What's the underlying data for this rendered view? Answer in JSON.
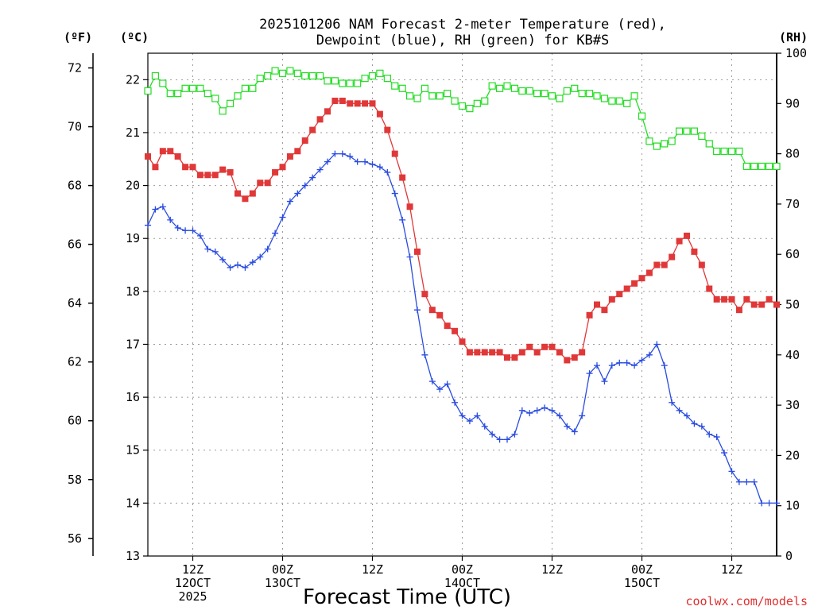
{
  "chart_data": {
    "type": "line",
    "title_lines": [
      "2025101206 NAM Forecast 2-meter Temperature (red),",
      "Dewpoint (blue), RH (green) for KB#S"
    ],
    "xlabel": "Forecast Time (UTC)",
    "credit": "coolwx.com/models",
    "units": {
      "fahrenheit": "(ºF)",
      "celsius": "(ºC)",
      "rh": "(RH)"
    },
    "x_ticks": [
      {
        "hour": 6,
        "lines": [
          "12Z",
          "12OCT",
          "2025"
        ]
      },
      {
        "hour": 18,
        "lines": [
          "00Z",
          "13OCT"
        ]
      },
      {
        "hour": 30,
        "lines": [
          "12Z"
        ]
      },
      {
        "hour": 42,
        "lines": [
          "00Z",
          "14OCT"
        ]
      },
      {
        "hour": 54,
        "lines": [
          "12Z"
        ]
      },
      {
        "hour": 66,
        "lines": [
          "00Z",
          "15OCT"
        ]
      },
      {
        "hour": 78,
        "lines": [
          "12Z"
        ]
      }
    ],
    "x_range_hours": [
      0,
      84
    ],
    "y_celsius": {
      "range": [
        13,
        22.5
      ],
      "ticks": [
        "13",
        "14",
        "15",
        "16",
        "17",
        "18",
        "19",
        "20",
        "21",
        "22"
      ]
    },
    "y_fahrenheit": {
      "ticks": [
        "56",
        "58",
        "60",
        "62",
        "64",
        "66",
        "68",
        "70",
        "72"
      ]
    },
    "y_rh": {
      "range": [
        0,
        100
      ],
      "ticks": [
        "0",
        "10",
        "20",
        "30",
        "40",
        "50",
        "60",
        "70",
        "80",
        "90",
        "100"
      ]
    },
    "grid": true,
    "series": [
      {
        "name": "Temperature",
        "axis": "celsius",
        "color": "#e03838",
        "marker": "filled-square",
        "x": [
          0,
          1,
          2,
          3,
          4,
          5,
          6,
          7,
          8,
          9,
          10,
          11,
          12,
          13,
          14,
          15,
          16,
          17,
          18,
          19,
          20,
          21,
          22,
          23,
          24,
          25,
          26,
          27,
          28,
          29,
          30,
          31,
          32,
          33,
          34,
          35,
          36,
          37,
          38,
          39,
          40,
          41,
          42,
          43,
          44,
          45,
          46,
          47,
          48,
          49,
          50,
          51,
          52,
          53,
          54,
          55,
          56,
          57,
          58,
          59,
          60,
          61,
          62,
          63,
          64,
          65,
          66,
          67,
          68,
          69,
          70,
          71,
          72,
          73,
          74,
          75,
          76,
          77,
          78,
          79,
          80,
          81,
          82,
          83,
          84
        ],
        "values": [
          20.55,
          20.35,
          20.65,
          20.65,
          20.55,
          20.35,
          20.35,
          20.2,
          20.2,
          20.2,
          20.3,
          20.25,
          19.85,
          19.75,
          19.85,
          20.05,
          20.05,
          20.25,
          20.35,
          20.55,
          20.65,
          20.85,
          21.05,
          21.25,
          21.4,
          21.6,
          21.6,
          21.55,
          21.55,
          21.55,
          21.55,
          21.35,
          21.05,
          20.6,
          20.15,
          19.6,
          18.75,
          17.95,
          17.65,
          17.55,
          17.35,
          17.25,
          17.05,
          16.85,
          16.85,
          16.85,
          16.85,
          16.85,
          16.75,
          16.75,
          16.85,
          16.95,
          16.85,
          16.95,
          16.95,
          16.85,
          16.7,
          16.75,
          16.85,
          17.55,
          17.75,
          17.65,
          17.85,
          17.95,
          18.05,
          18.15,
          18.25,
          18.35,
          18.5,
          18.5,
          18.65,
          18.95,
          19.05,
          18.75,
          18.5,
          18.05,
          17.85,
          17.85,
          17.85,
          17.65,
          17.85,
          17.75,
          17.75,
          17.85,
          17.75
        ]
      },
      {
        "name": "Dewpoint",
        "axis": "celsius",
        "color": "#2a4be0",
        "marker": "plus",
        "x": [
          0,
          1,
          2,
          3,
          4,
          5,
          6,
          7,
          8,
          9,
          10,
          11,
          12,
          13,
          14,
          15,
          16,
          17,
          18,
          19,
          20,
          21,
          22,
          23,
          24,
          25,
          26,
          27,
          28,
          29,
          30,
          31,
          32,
          33,
          34,
          35,
          36,
          37,
          38,
          39,
          40,
          41,
          42,
          43,
          44,
          45,
          46,
          47,
          48,
          49,
          50,
          51,
          52,
          53,
          54,
          55,
          56,
          57,
          58,
          59,
          60,
          61,
          62,
          63,
          64,
          65,
          66,
          67,
          68,
          69,
          70,
          71,
          72,
          73,
          74,
          75,
          76,
          77,
          78,
          79,
          80,
          81,
          82,
          83,
          84
        ],
        "values": [
          19.25,
          19.55,
          19.6,
          19.35,
          19.2,
          19.15,
          19.15,
          19.05,
          18.8,
          18.75,
          18.6,
          18.45,
          18.5,
          18.45,
          18.55,
          18.65,
          18.8,
          19.1,
          19.4,
          19.7,
          19.85,
          20.0,
          20.15,
          20.3,
          20.45,
          20.6,
          20.6,
          20.55,
          20.45,
          20.45,
          20.4,
          20.35,
          20.25,
          19.85,
          19.35,
          18.65,
          17.65,
          16.8,
          16.3,
          16.15,
          16.25,
          15.9,
          15.65,
          15.55,
          15.65,
          15.45,
          15.3,
          15.2,
          15.2,
          15.3,
          15.75,
          15.7,
          15.75,
          15.8,
          15.75,
          15.65,
          15.45,
          15.35,
          15.65,
          16.45,
          16.6,
          16.3,
          16.6,
          16.65,
          16.65,
          16.6,
          16.7,
          16.8,
          17.0,
          16.6,
          15.9,
          15.75,
          15.65,
          15.5,
          15.45,
          15.3,
          15.25,
          14.95,
          14.6,
          14.4,
          14.4,
          14.4,
          14.0,
          14.0,
          14.0
        ],
        "note": "values after hour 83 continue off-axis"
      },
      {
        "name": "RH",
        "axis": "rh",
        "color": "#22dd22",
        "marker": "open-square",
        "x": [
          0,
          1,
          2,
          3,
          4,
          5,
          6,
          7,
          8,
          9,
          10,
          11,
          12,
          13,
          14,
          15,
          16,
          17,
          18,
          19,
          20,
          21,
          22,
          23,
          24,
          25,
          26,
          27,
          28,
          29,
          30,
          31,
          32,
          33,
          34,
          35,
          36,
          37,
          38,
          39,
          40,
          41,
          42,
          43,
          44,
          45,
          46,
          47,
          48,
          49,
          50,
          51,
          52,
          53,
          54,
          55,
          56,
          57,
          58,
          59,
          60,
          61,
          62,
          63,
          64,
          65,
          66,
          67,
          68,
          69,
          70,
          71,
          72,
          73,
          74,
          75,
          76,
          77,
          78,
          79,
          80,
          81,
          82,
          83,
          84
        ],
        "values": [
          92.5,
          95.5,
          94.0,
          92.0,
          92.0,
          93.0,
          93.0,
          93.0,
          92.0,
          91.0,
          88.5,
          90.0,
          91.5,
          93.0,
          93.0,
          95.0,
          95.5,
          96.5,
          96.0,
          96.5,
          96.0,
          95.5,
          95.5,
          95.5,
          94.5,
          94.5,
          94.0,
          94.0,
          94.0,
          95.0,
          95.5,
          96.0,
          95.0,
          93.5,
          93.0,
          91.5,
          91.0,
          93.0,
          91.5,
          91.5,
          92.0,
          90.5,
          89.5,
          89.0,
          90.0,
          90.5,
          93.5,
          93.0,
          93.5,
          93.0,
          92.5,
          92.5,
          92.0,
          92.0,
          91.5,
          91.0,
          92.5,
          93.0,
          92.0,
          92.0,
          91.5,
          91.0,
          90.5,
          90.5,
          90.0,
          91.5,
          87.5,
          82.5,
          81.5,
          82.0,
          82.5,
          84.5,
          84.5,
          84.5,
          83.5,
          82.0,
          80.5,
          80.5,
          80.5,
          80.5,
          77.5,
          77.5,
          77.5,
          77.5,
          77.5
        ]
      }
    ]
  }
}
